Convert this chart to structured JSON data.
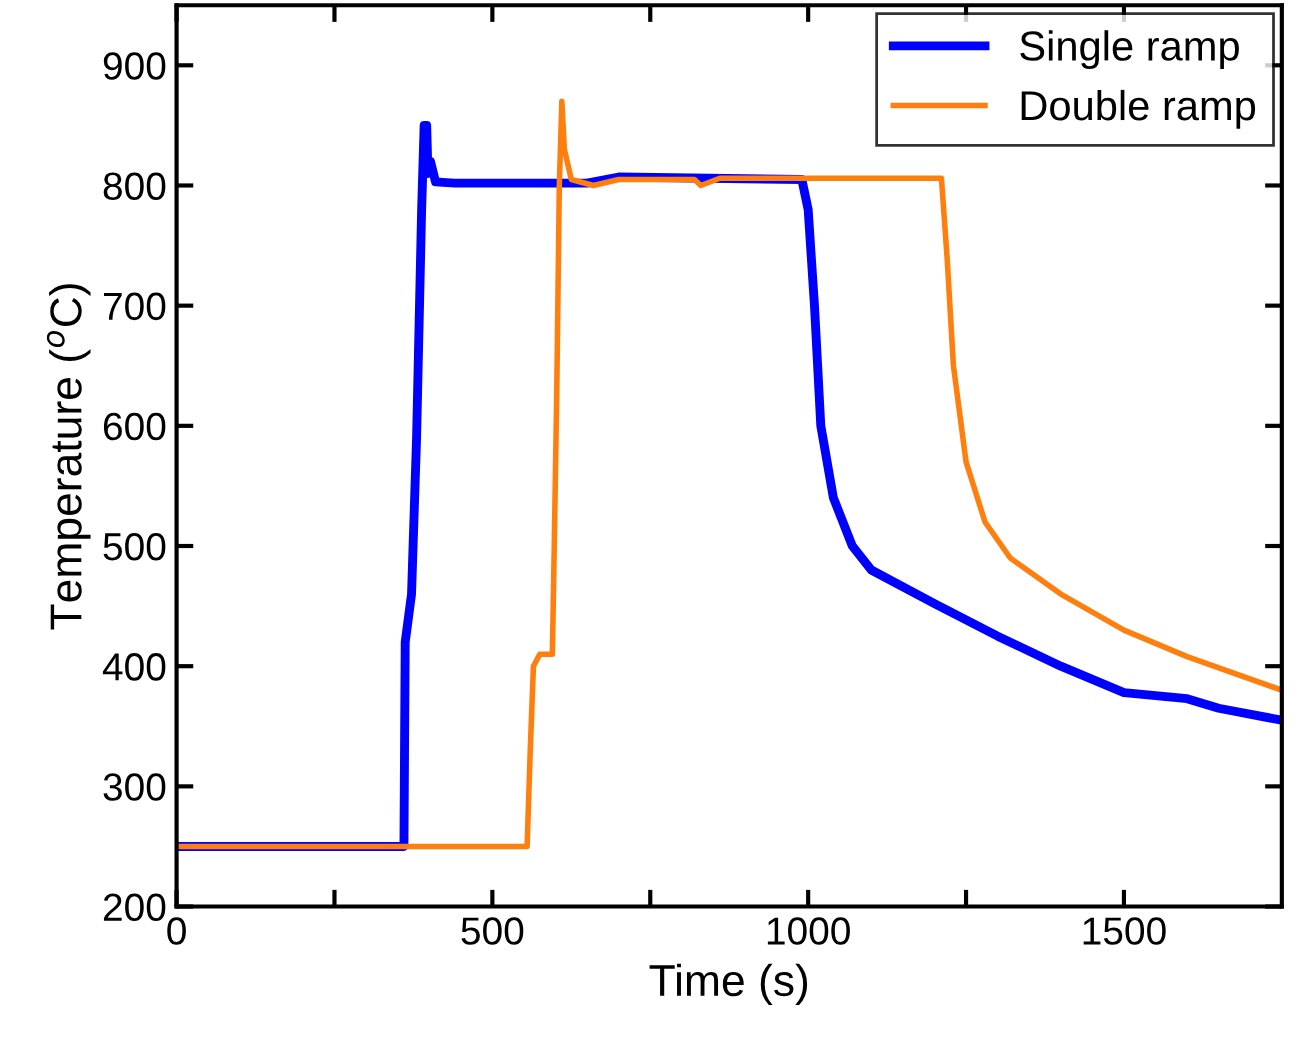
{
  "chart_data": {
    "type": "line",
    "xlabel": "Time (s)",
    "ylabel": "Temperature ($^{o}$C)",
    "xlim": [
      0,
      1750
    ],
    "ylim": [
      200,
      950
    ],
    "xticks": [
      0,
      {
        "value": 250,
        "label": null
      },
      500,
      {
        "value": 750,
        "label": null
      },
      1000,
      {
        "value": 1250,
        "label": null
      },
      1500
    ],
    "yticks": [
      200,
      300,
      400,
      500,
      600,
      700,
      800,
      900
    ],
    "grid": false,
    "legend": "top right",
    "marker": "none",
    "line_style": "solid",
    "series": [
      {
        "name": "Single ramp",
        "color": "#0000ff",
        "x": [
          0,
          360,
          362,
          372,
          380,
          388,
          392,
          396,
          398,
          402,
          410,
          440,
          650,
          700,
          990,
          1000,
          1010,
          1020,
          1040,
          1070,
          1100,
          1200,
          1300,
          1400,
          1500,
          1600,
          1650,
          1750
        ],
        "values": [
          250,
          250,
          420,
          460,
          590,
          780,
          850,
          850,
          810,
          820,
          803,
          802,
          802,
          807,
          805,
          780,
          700,
          600,
          540,
          500,
          480,
          452,
          425,
          400,
          378,
          373,
          365,
          355
        ]
      },
      {
        "name": "Double ramp",
        "color": "#ff7f0e",
        "x": [
          0,
          555,
          560,
          565,
          575,
          595,
          598,
          602,
          606,
          610,
          614,
          625,
          660,
          700,
          820,
          830,
          860,
          1211,
          1220,
          1230,
          1250,
          1280,
          1320,
          1400,
          1500,
          1600,
          1750
        ],
        "values": [
          250,
          250,
          330,
          400,
          410,
          410,
          500,
          630,
          800,
          870,
          830,
          805,
          800,
          805,
          805,
          800,
          806,
          806,
          740,
          650,
          570,
          520,
          490,
          460,
          430,
          408,
          380
        ]
      }
    ]
  }
}
